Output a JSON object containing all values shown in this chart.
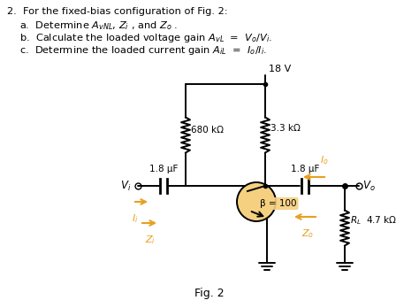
{
  "title_text": "2.  For the fixed-bias configuration of Fig. 2:",
  "item_a": "a.  Determine $A_{vNL}$, $Z_i$ , and $Z_o$ .",
  "item_b": "b.  Calculate the loaded voltage gain $A_{vL}$  =  $V_o/V_i$.",
  "item_c": "c.  Determine the loaded current gain $A_{iL}$  =  $I_o/I_i$.",
  "fig_label": "Fig. 2",
  "vcc_label": "18 V",
  "r1_label": "680 kΩ",
  "rc_label": "3.3 kΩ",
  "c1_label": "1.8 μF",
  "c2_label": "1.8 μF",
  "beta_label": "β = 100",
  "rl_label": "4.7 kΩ",
  "vi_label": "$V_i$",
  "vo_label": "$V_o$",
  "zi_label": "$Z_i$",
  "zo_label": "$Z_o$",
  "ii_label": "$I_i$",
  "io_label": "$I_o$",
  "rl_text": "$R_L$",
  "bg_color": "#ffffff",
  "arrow_color": "#e8a020",
  "circuit_color": "#000000",
  "highlight_color": "#f5d080"
}
